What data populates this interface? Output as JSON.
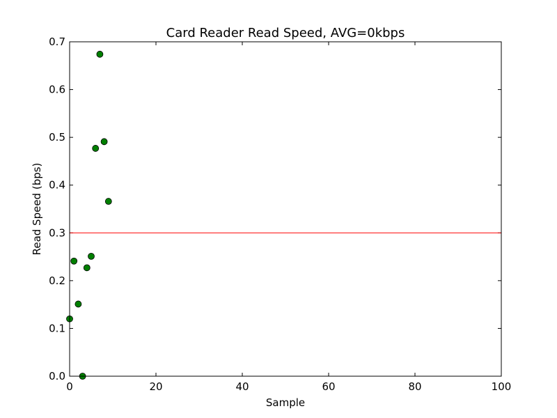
{
  "chart_data": {
    "type": "scatter",
    "title": "Card Reader Read Speed, AVG=0kbps",
    "xlabel": "Sample",
    "ylabel": "Read Speed (bps)",
    "xlim": [
      0,
      100
    ],
    "ylim": [
      0,
      0.7
    ],
    "xticks": [
      "0",
      "20",
      "40",
      "60",
      "80",
      "100"
    ],
    "yticks": [
      "0.0",
      "0.1",
      "0.2",
      "0.3",
      "0.4",
      "0.5",
      "0.6",
      "0.7"
    ],
    "grid": false,
    "legend": "none",
    "series": [
      {
        "color": "#007f00",
        "x": [
          0,
          1,
          2,
          3,
          4,
          5,
          6,
          7,
          8,
          9
        ],
        "y": [
          0.12,
          0.241,
          0.151,
          0.0,
          0.227,
          0.251,
          0.477,
          0.674,
          0.491,
          0.366
        ]
      }
    ],
    "reference_line": {
      "y": 0.3,
      "color": "#ff0000"
    }
  }
}
